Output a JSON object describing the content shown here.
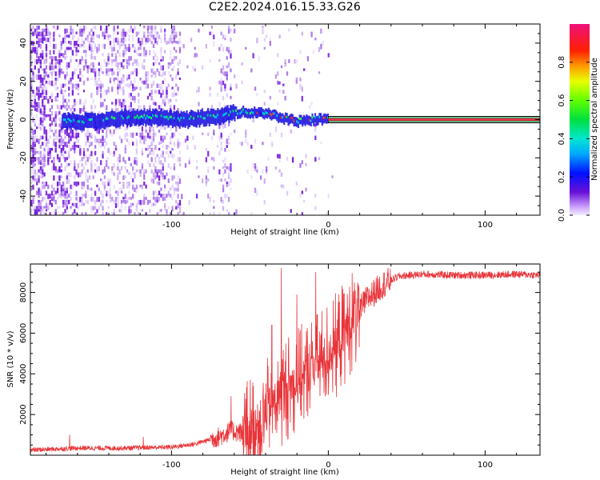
{
  "title": "C2E2.2024.016.15.33.G26",
  "colors": {
    "snr_line": "#e8353a",
    "carrier_core": "#e8304a",
    "carrier_edge": "#2e8b57",
    "scatter_low": "#a875e8",
    "scatter_mid": "#6a10d8",
    "cloud_high": "#00e070"
  },
  "chart_data": [
    {
      "type": "heatmap",
      "name": "spectrogram",
      "xlabel": "Height of straight line (km)",
      "ylabel": "Frequency (Hz)",
      "xlim": [
        -190,
        135
      ],
      "ylim": [
        -50,
        50
      ],
      "xticks": [
        -100,
        0,
        100
      ],
      "xtick_labels": [
        "-100",
        "0",
        "100"
      ],
      "yticks": [
        -40,
        -20,
        0,
        20,
        40
      ],
      "ytick_labels": [
        "-40",
        "-20",
        "0",
        "20",
        "40"
      ],
      "carrier": {
        "x_start": 0,
        "x_end": 135,
        "frequency": 0
      },
      "signal_track": [
        {
          "x": -170,
          "f": -1
        },
        {
          "x": -150,
          "f": -1
        },
        {
          "x": -130,
          "f": 1
        },
        {
          "x": -110,
          "f": 1
        },
        {
          "x": -90,
          "f": 0
        },
        {
          "x": -70,
          "f": 2
        },
        {
          "x": -55,
          "f": 4
        },
        {
          "x": -40,
          "f": 3
        },
        {
          "x": -30,
          "f": 1
        },
        {
          "x": -20,
          "f": -1
        },
        {
          "x": -10,
          "f": 0
        },
        {
          "x": 0,
          "f": 0
        }
      ],
      "colorbar": {
        "label": "Normalized spectral amplitude",
        "range": [
          0,
          1
        ],
        "ticks": [
          0.0,
          0.2,
          0.4,
          0.6,
          0.8
        ],
        "tick_labels": [
          "0.0",
          "0.2",
          "0.4",
          "0.6",
          "0.8"
        ]
      },
      "grid": false
    },
    {
      "type": "line",
      "name": "snr",
      "xlabel": "Height of straight line (km)",
      "ylabel": "SNR (10 * v/v)",
      "xlim": [
        -190,
        135
      ],
      "ylim": [
        0,
        9400
      ],
      "xticks": [
        -100,
        0,
        100
      ],
      "xtick_labels": [
        "-100",
        "0",
        "100"
      ],
      "yticks": [
        2000,
        4000,
        6000,
        8000
      ],
      "ytick_labels": [
        "2000",
        "4000",
        "6000",
        "8000"
      ],
      "envelope": {
        "x": [
          -190,
          -160,
          -130,
          -100,
          -85,
          -70,
          -62,
          -55,
          -45,
          -35,
          -25,
          -15,
          -5,
          5,
          15,
          25,
          35,
          45,
          60,
          80,
          100,
          120,
          135
        ],
        "y": [
          250,
          350,
          350,
          400,
          550,
          900,
          1200,
          1100,
          1500,
          2600,
          3400,
          4000,
          4600,
          5400,
          6600,
          7700,
          8400,
          8800,
          8900,
          8850,
          8850,
          8900,
          8850
        ]
      },
      "spikes": [
        {
          "x": -30,
          "y": 9200
        },
        {
          "x": -8,
          "y": 9000
        },
        {
          "x": -62,
          "y": 2900
        },
        {
          "x": -36,
          "y": 6400
        },
        {
          "x": -20,
          "y": 7900
        },
        {
          "x": -165,
          "y": 1000
        },
        {
          "x": -118,
          "y": 900
        }
      ],
      "noise_seed": 7,
      "grid": false
    }
  ]
}
